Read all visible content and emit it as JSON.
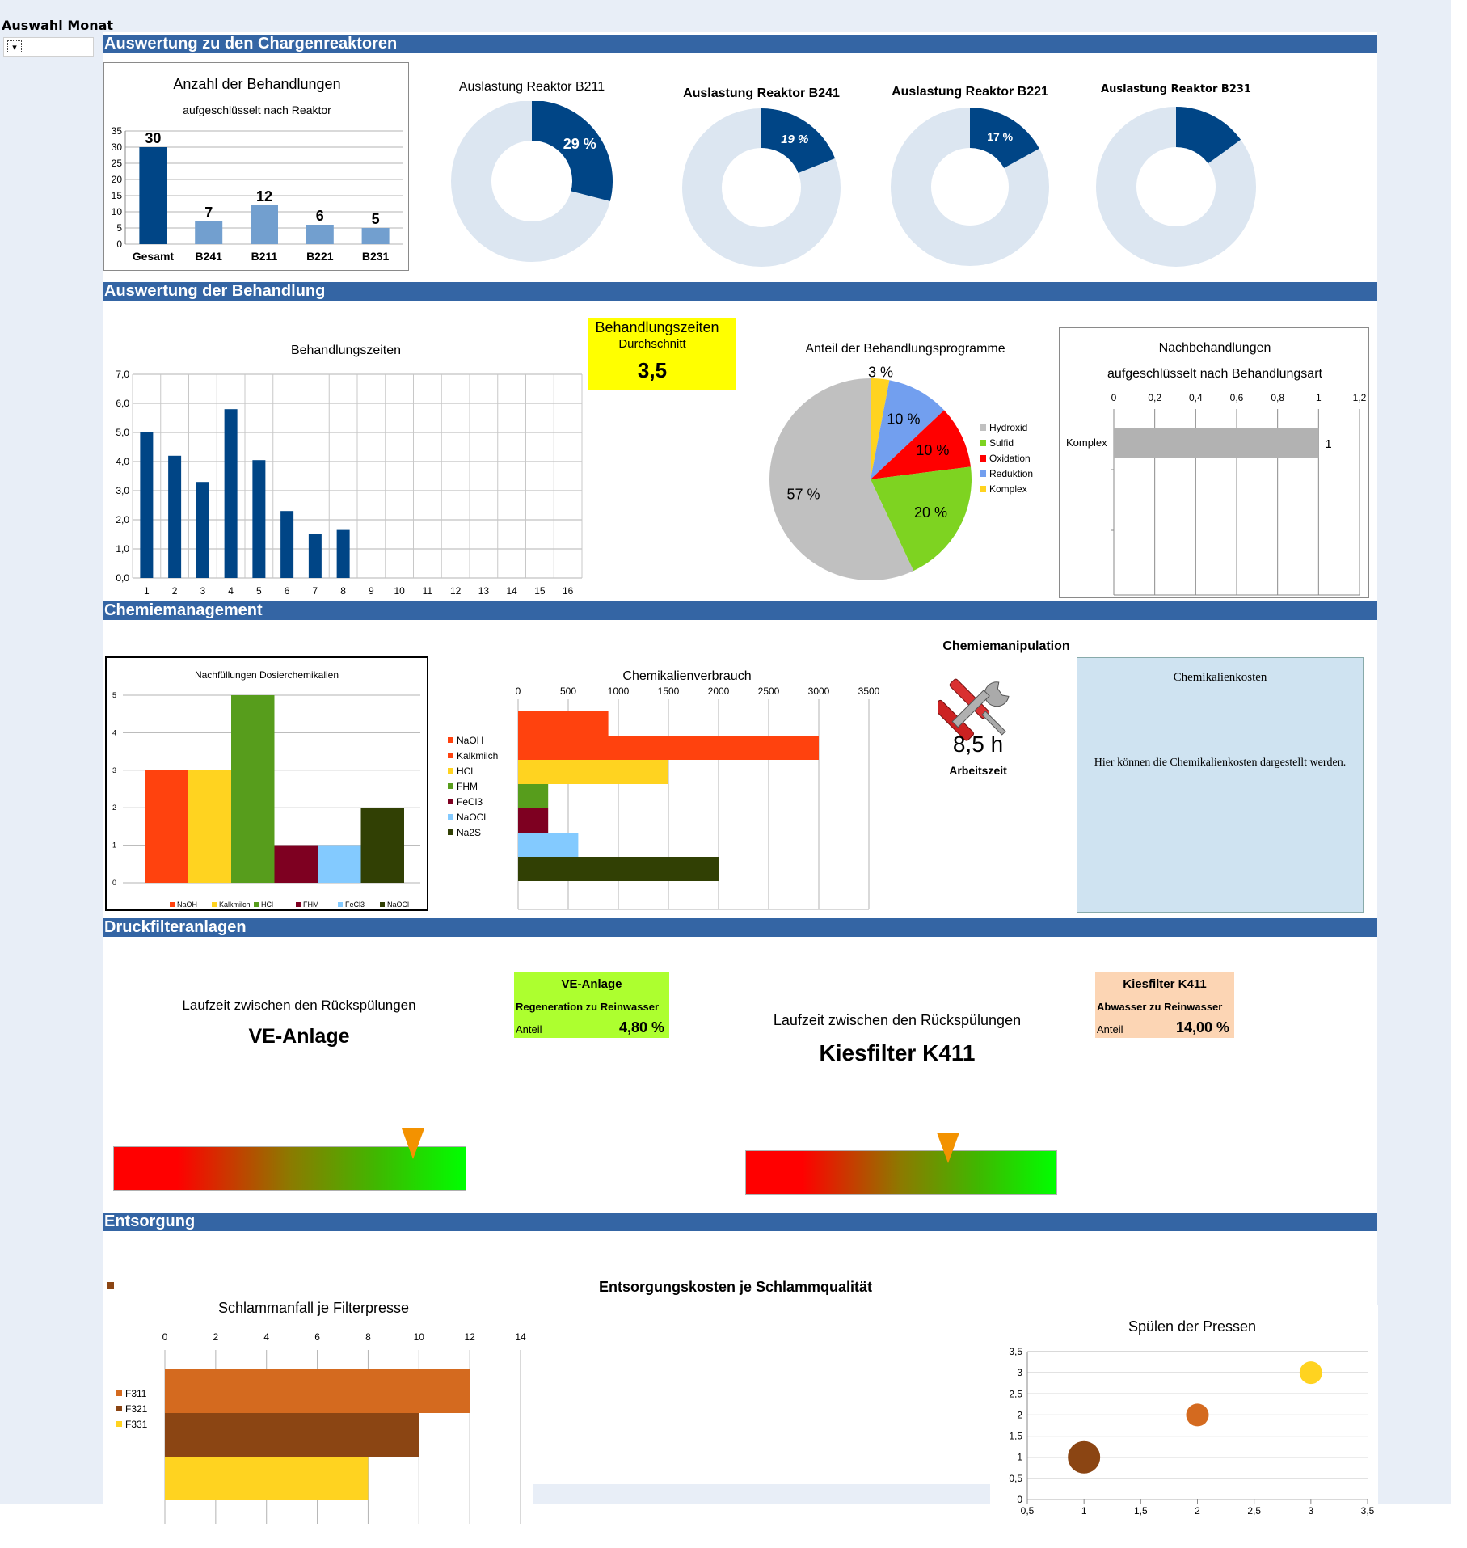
{
  "month_selector": {
    "label": "Auswahl Monat",
    "value": ""
  },
  "sections": {
    "reactors": "Auswertung zu den Chargenreaktoren",
    "treatment": "Auswertung der Behandlung",
    "chemistry": "Chemiemanagement",
    "filters": "Druckfilteranlagen",
    "disposal": "Entsorgung"
  },
  "treatment_avg": {
    "title": "Behandlungszeiten",
    "subtitle": "Durchschnitt",
    "value": "3,5",
    "color": "#ffff00"
  },
  "chem_manipulation": {
    "title": "Chemiemanipulation",
    "value": "8,5 h",
    "label": "Arbeitszeit",
    "icon": "tools-icon"
  },
  "chem_costs": {
    "title": "Chemikalienkosten",
    "text": "Hier können die Chemikalienkosten dargestellt werden.",
    "color": "#cfe3f1"
  },
  "ve_panel": {
    "caption": "Laufzeit zwischen den Rückspülungen",
    "name": "VE-Anlage",
    "box_title": "VE-Anlage",
    "box_subtitle": "Regeneration zu Reinwasser",
    "box_label": "Anteil",
    "box_value": "4,80 %",
    "box_color": "#adff2f",
    "gauge_level": 0.85
  },
  "kies_panel": {
    "caption": "Laufzeit zwischen den Rückspülungen",
    "name": "Kiesfilter K411",
    "box_title": "Kiesfilter K411",
    "box_subtitle": "Abwasser zu Reinwasser",
    "box_label": "Anteil",
    "box_value": "14,00 %",
    "box_color": "#fcd5b4",
    "gauge_level": 0.65
  },
  "disposal_cost_title": "Entsorgungskosten je Schlammqualität",
  "chart_data": [
    {
      "id": "behandlungen",
      "type": "bar",
      "title": "Anzahl der Behandlungen",
      "subtitle": "aufgeschlüsselt nach Reaktor",
      "categories": [
        "Gesamt",
        "B241",
        "B211",
        "B221",
        "B231"
      ],
      "values": [
        30,
        7,
        12,
        6,
        5
      ],
      "yticks": [
        "0",
        "5",
        "10",
        "15",
        "20",
        "25",
        "30",
        "35"
      ],
      "ylim": [
        0,
        35
      ],
      "colors": [
        "#004586",
        "#729fcf",
        "#729fcf",
        "#729fcf",
        "#729fcf"
      ]
    },
    {
      "id": "b211",
      "type": "pie",
      "title": "Auslastung Reaktor B211",
      "value": 29,
      "label": "29 %"
    },
    {
      "id": "b241",
      "type": "pie",
      "title": "Auslastung Reaktor B241",
      "value": 19,
      "label": "19 %"
    },
    {
      "id": "b221",
      "type": "pie",
      "title": "Auslastung Reaktor B221",
      "value": 17,
      "label": "17 %"
    },
    {
      "id": "b231",
      "type": "pie",
      "title": "Auslastung Reaktor B231",
      "value": 15,
      "label": ""
    },
    {
      "id": "zeiten",
      "type": "bar",
      "title": "Behandlungszeiten",
      "categories": [
        "1",
        "2",
        "3",
        "4",
        "5",
        "6",
        "7",
        "8",
        "9",
        "10",
        "11",
        "12",
        "13",
        "14",
        "15",
        "16"
      ],
      "values": [
        5.0,
        4.2,
        3.3,
        5.8,
        4.05,
        2.3,
        1.5,
        1.65,
        0,
        0,
        0,
        0,
        0,
        0,
        0,
        0
      ],
      "yticks": [
        "0,0",
        "1,0",
        "2,0",
        "3,0",
        "4,0",
        "5,0",
        "6,0",
        "7,0"
      ],
      "ylim": [
        0,
        7
      ]
    },
    {
      "id": "programme",
      "type": "pie",
      "title": "Anteil der Behandlungsprogramme",
      "slices": [
        {
          "name": "Komplex",
          "value": 3,
          "label": "3 %",
          "color": "#ffd320"
        },
        {
          "name": "Reduktion",
          "value": 10,
          "label": "10 %",
          "color": "#729fef"
        },
        {
          "name": "Oxidation",
          "value": 10,
          "label": "10 %",
          "color": "#ff0000"
        },
        {
          "name": "Sulfid",
          "value": 20,
          "label": "20 %",
          "color": "#7ed321"
        },
        {
          "name": "Hydroxid",
          "value": 57,
          "label": "57 %",
          "color": "#c0c0c0"
        }
      ],
      "legend": [
        "Hydroxid",
        "Sulfid",
        "Oxidation",
        "Reduktion",
        "Komplex"
      ]
    },
    {
      "id": "nachbehandlungen",
      "type": "bar",
      "orientation": "horizontal",
      "title": "Nachbehandlungen",
      "subtitle": "aufgeschlüsselt nach Behandlungsart",
      "categories": [
        "Komplex"
      ],
      "values": [
        1
      ],
      "value_labels": [
        "1"
      ],
      "xticks": [
        "0",
        "0,2",
        "0,4",
        "0,6",
        "0,8",
        "1",
        "1,2"
      ],
      "xlim": [
        0,
        1.2
      ]
    },
    {
      "id": "nachfuellungen",
      "type": "bar",
      "title": "Nachfüllungen Dosierchemikalien",
      "categories": [
        "NaOH",
        "Kalkmilch",
        "HCl",
        "FHM",
        "FeCl3",
        "NaOCl"
      ],
      "values": [
        3,
        3,
        5,
        1,
        1,
        2
      ],
      "colors": [
        "#ff420e",
        "#ffd320",
        "#579d1c",
        "#7e0021",
        "#83caff",
        "#314004"
      ],
      "yticks": [
        "0",
        "1",
        "2",
        "3",
        "4",
        "5"
      ],
      "ylim": [
        0,
        5
      ]
    },
    {
      "id": "verbrauch",
      "type": "bar",
      "orientation": "horizontal",
      "title": "Chemikalienverbrauch",
      "categories": [
        "NaOH",
        "Kalkmilch",
        "HCl",
        "FHM",
        "FeCl3",
        "NaOCl",
        "Na2S"
      ],
      "values": [
        900,
        3000,
        1500,
        300,
        300,
        600,
        2000
      ],
      "colors": [
        "#ff420e",
        "#ff420e",
        "#ffd320",
        "#579d1c",
        "#7e0021",
        "#83caff",
        "#314004"
      ],
      "legend_colors": [
        "#ff420e",
        "#ff420e",
        "#ffd320",
        "#579d1c",
        "#7e0021",
        "#83caff",
        "#314004"
      ],
      "xticks": [
        "0",
        "500",
        "1000",
        "1500",
        "2000",
        "2500",
        "3000",
        "3500"
      ],
      "xlim": [
        0,
        3500
      ]
    },
    {
      "id": "schlamm",
      "type": "bar",
      "orientation": "horizontal",
      "title": "Schlammanfall je Filterpresse",
      "categories": [
        "F311",
        "F321",
        "F331"
      ],
      "values": [
        12,
        10,
        8
      ],
      "colors": [
        "#d46a1f",
        "#8b4513",
        "#ffd320"
      ],
      "xticks": [
        "0",
        "2",
        "4",
        "6",
        "8",
        "10",
        "12",
        "14"
      ],
      "xlim": [
        0,
        14
      ]
    },
    {
      "id": "spuelen",
      "type": "scatter",
      "title": "Spülen der Pressen",
      "points": [
        {
          "x": 1,
          "y": 1,
          "size": 20,
          "color": "#8b4513"
        },
        {
          "x": 2,
          "y": 2,
          "size": 14,
          "color": "#d46a1f"
        },
        {
          "x": 3,
          "y": 3,
          "size": 14,
          "color": "#ffd320"
        }
      ],
      "xticks": [
        "0,5",
        "1",
        "1,5",
        "2",
        "2,5",
        "3",
        "3,5"
      ],
      "yticks": [
        "0",
        "0,5",
        "1",
        "1,5",
        "2",
        "2,5",
        "3",
        "3,5"
      ],
      "xlim": [
        0.5,
        3.5
      ],
      "ylim": [
        0,
        3.5
      ]
    }
  ]
}
